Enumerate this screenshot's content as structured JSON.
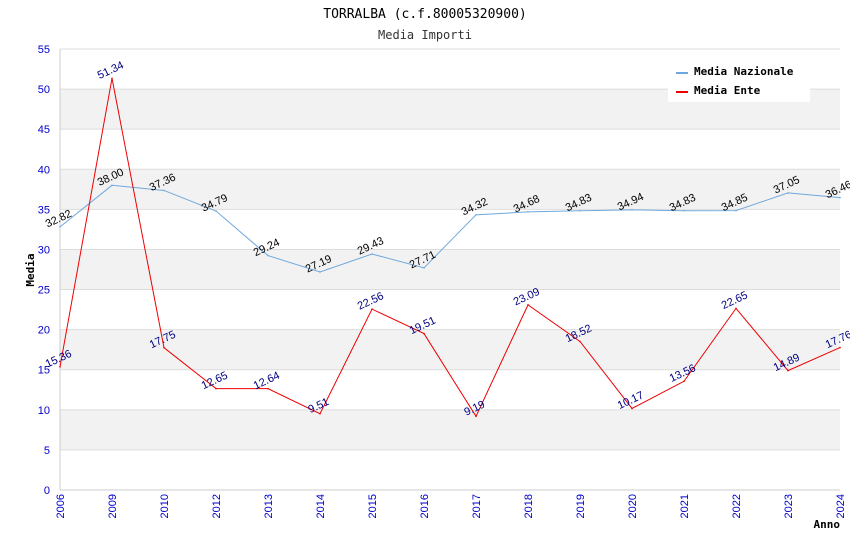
{
  "chart_data": {
    "type": "line",
    "title": "TORRALBA (c.f.80005320900)",
    "subtitle": "Media Importi",
    "xlabel": "Anno",
    "ylabel": "Media",
    "ylim": [
      0,
      55
    ],
    "yticks": [
      0,
      5,
      10,
      15,
      20,
      25,
      30,
      35,
      40,
      45,
      50,
      55
    ],
    "categories": [
      "2006",
      "2009",
      "2010",
      "2012",
      "2013",
      "2014",
      "2015",
      "2016",
      "2017",
      "2018",
      "2019",
      "2020",
      "2021",
      "2022",
      "2023",
      "2024"
    ],
    "series": [
      {
        "name": "Media Nazionale",
        "color": "#6fa8dc",
        "label_color": "#000000",
        "values": [
          32.82,
          38.0,
          37.36,
          34.79,
          29.24,
          27.19,
          29.43,
          27.71,
          34.32,
          34.68,
          34.83,
          34.94,
          34.83,
          34.85,
          37.05,
          36.46
        ],
        "labels": [
          "32.82",
          "38.00",
          "37.36",
          "34.79",
          "29.24",
          "27.19",
          "29.43",
          "27.71",
          "34.32",
          "34.68",
          "34.83",
          "34.94",
          "34.83",
          "34.85",
          "37.05",
          "36.46"
        ]
      },
      {
        "name": "Media Ente",
        "color": "#ee0000",
        "label_color": "#000080",
        "values": [
          15.36,
          51.34,
          17.75,
          12.65,
          12.64,
          9.51,
          22.56,
          19.51,
          9.19,
          23.09,
          18.52,
          10.17,
          13.56,
          22.65,
          14.89,
          17.76
        ],
        "labels": [
          "15.36",
          "51.34",
          "17.75",
          "12.65",
          "12.64",
          "9.51",
          "22.56",
          "19.51",
          "9.19",
          "23.09",
          "18.52",
          "10.17",
          "13.56",
          "22.65",
          "14.89",
          "17.76"
        ]
      }
    ],
    "grid": true,
    "legend_position": "top-right"
  }
}
